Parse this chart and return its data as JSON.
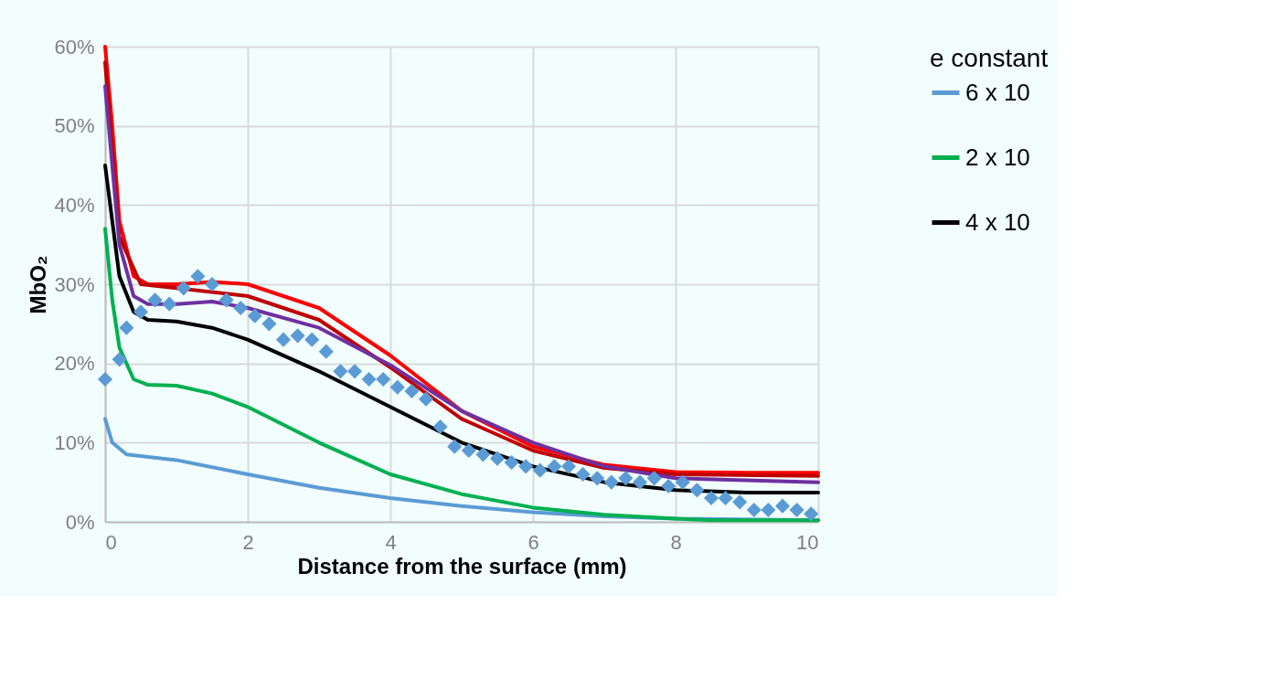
{
  "chart_data": {
    "type": "line",
    "xlabel": "Distance from the surface (mm)",
    "ylabel": "MbO₂",
    "legend_title": "e constant",
    "legend": "right",
    "grid": true,
    "line_style": "solid",
    "xlim": [
      0,
      10
    ],
    "xticks": [
      0,
      2,
      4,
      6,
      8,
      10
    ],
    "ylim": [
      0,
      60
    ],
    "yticks": [
      {
        "value": 0,
        "label": "0%"
      },
      {
        "value": 10,
        "label": "10%"
      },
      {
        "value": 20,
        "label": "20%"
      },
      {
        "value": 30,
        "label": "30%"
      },
      {
        "value": 40,
        "label": "40%"
      },
      {
        "value": 50,
        "label": "50%"
      },
      {
        "value": 60,
        "label": "60%"
      }
    ],
    "series": [
      {
        "name": "6 x 10",
        "color": "#5b9bd5",
        "x": [
          0,
          0.1,
          0.3,
          1,
          2,
          3,
          4,
          5,
          6,
          7,
          8,
          10
        ],
        "values": [
          13,
          10,
          8.5,
          7.8,
          6,
          4.3,
          3,
          2,
          1.2,
          0.7,
          0.4,
          0.2
        ]
      },
      {
        "name": "2 x 10",
        "color": "#00b050",
        "x": [
          0,
          0.1,
          0.2,
          0.4,
          0.6,
          1,
          1.5,
          2,
          3,
          4,
          5,
          6,
          7,
          8,
          8.5,
          10
        ],
        "values": [
          37,
          28,
          22,
          18,
          17.3,
          17.2,
          16.2,
          14.5,
          10,
          6,
          3.5,
          1.8,
          0.9,
          0.4,
          0.2,
          0.2
        ]
      },
      {
        "name": "4 x 10",
        "color": "#000000",
        "x": [
          0,
          0.1,
          0.2,
          0.4,
          0.6,
          1,
          1.5,
          2,
          3,
          4,
          5,
          6,
          7,
          8,
          9,
          10
        ],
        "values": [
          45,
          38,
          31,
          26.5,
          25.5,
          25.3,
          24.5,
          23,
          19,
          14.5,
          10,
          7,
          5,
          4,
          3.7,
          3.7
        ]
      },
      {
        "color": "#ff0000",
        "x": [
          0,
          0.1,
          0.2,
          0.4,
          0.6,
          1,
          1.5,
          2,
          3,
          4,
          5,
          6,
          7,
          8,
          9,
          10
        ],
        "values": [
          60,
          50,
          38,
          31,
          30,
          30,
          30.3,
          30,
          27,
          21,
          14,
          9.5,
          7.2,
          6.3,
          6.2,
          6.2
        ]
      },
      {
        "color": "#c00000",
        "x": [
          0,
          0.2,
          0.5,
          1,
          2,
          3,
          4,
          5,
          6,
          7,
          8,
          10
        ],
        "values": [
          58,
          36,
          30,
          29.5,
          28.5,
          25.5,
          19.5,
          13,
          9,
          6.8,
          6,
          5.8
        ]
      },
      {
        "color": "#7030a0",
        "x": [
          0,
          0.1,
          0.2,
          0.4,
          0.6,
          1,
          1.5,
          2,
          3,
          4,
          5,
          6,
          7,
          8,
          10
        ],
        "values": [
          55,
          45,
          35,
          28.5,
          27.5,
          27.5,
          27.8,
          27,
          24.5,
          19.8,
          14,
          10,
          7,
          5.5,
          5
        ]
      },
      {
        "type": "scatter",
        "marker": "diamond",
        "color": "#5b9bd5",
        "x": [
          0,
          0.2,
          0.3,
          0.5,
          0.7,
          0.9,
          1.1,
          1.3,
          1.5,
          1.7,
          1.9,
          2.1,
          2.3,
          2.5,
          2.7,
          2.9,
          3.1,
          3.3,
          3.5,
          3.7,
          3.9,
          4.1,
          4.3,
          4.5,
          4.7,
          4.9,
          5.1,
          5.3,
          5.5,
          5.7,
          5.9,
          6.1,
          6.3,
          6.5,
          6.7,
          6.9,
          7.1,
          7.3,
          7.5,
          7.7,
          7.9,
          8.1,
          8.3,
          8.5,
          8.7,
          8.9,
          9.1,
          9.3,
          9.5,
          9.7,
          9.9
        ],
        "values": [
          18,
          20.5,
          24.5,
          26.5,
          28,
          27.5,
          29.5,
          31,
          30,
          28,
          27,
          26,
          25,
          23,
          23.5,
          23,
          21.5,
          19,
          19,
          18,
          18,
          17,
          16.5,
          15.5,
          12,
          9.5,
          9,
          8.5,
          8,
          7.5,
          7,
          6.5,
          7,
          7,
          6,
          5.5,
          5,
          5.5,
          5,
          5.5,
          4.5,
          5,
          4,
          3,
          3,
          2.5,
          1.5,
          1.5,
          2,
          1.5,
          1
        ]
      }
    ]
  }
}
